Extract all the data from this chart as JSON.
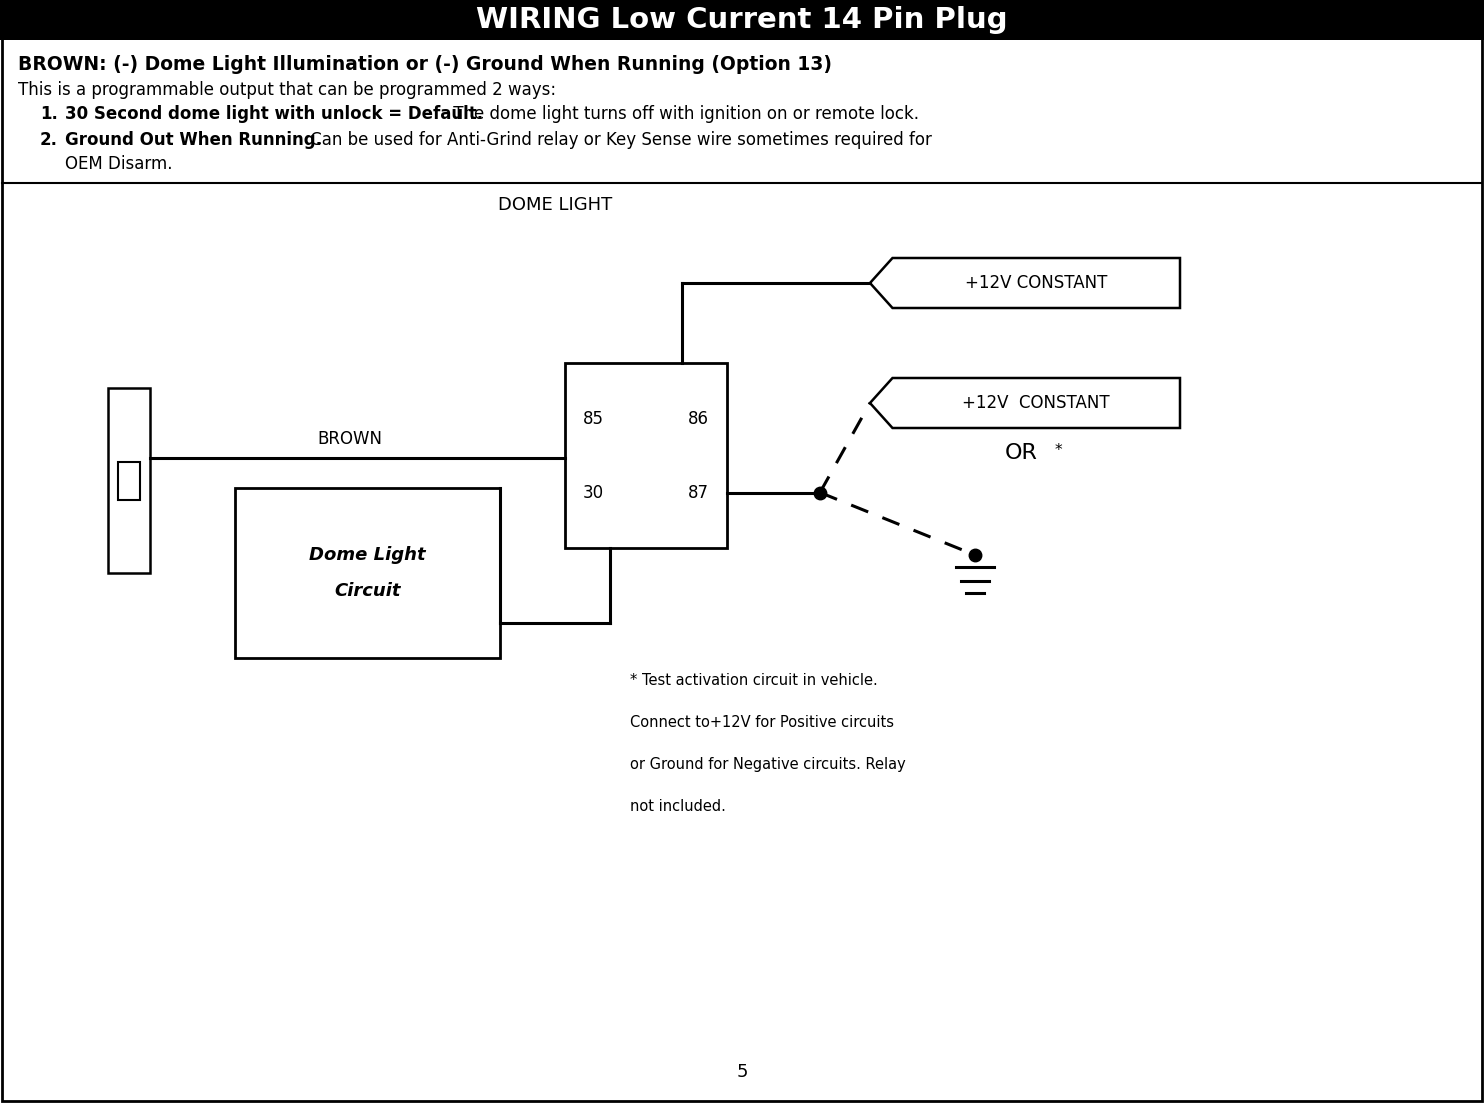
{
  "title": "WIRING Low Current 14 Pin Plug",
  "title_bg": "#000000",
  "title_color": "#ffffff",
  "title_fontsize": 20,
  "header_line1_bold": "BROWN: (-) Dome Light Illumination or (-) Ground When Running (Option 13)",
  "header_line2": "This is a programmable output that can be programmed 2 ways:",
  "item1_bold": "30 Second dome light with unlock = Default.",
  "item1_normal": " The dome light turns off with ignition on or remote lock.",
  "item2_bold": "Ground Out When Running.",
  "item2_normal": " Can be used for Anti-Grind relay or Key Sense wire sometimes required for",
  "item2_cont": "OEM Disarm.",
  "page_number": "5",
  "diagram_label": "DOME LIGHT",
  "label_brown": "BROWN",
  "label_12v_top": "+12V CONSTANT",
  "label_12v_bottom": "+12V  CONSTANT",
  "label_or": "OR",
  "label_dome_light_1": "Dome Light",
  "label_dome_light_2": "Circuit",
  "fn1": "* Test activation circuit in vehicle.",
  "fn2": "Connect to+12V for Positive circuits",
  "fn3": "or Ground for Negative circuits. Relay",
  "fn4": "not included.",
  "bg_color": "#ffffff",
  "line_color": "#000000"
}
